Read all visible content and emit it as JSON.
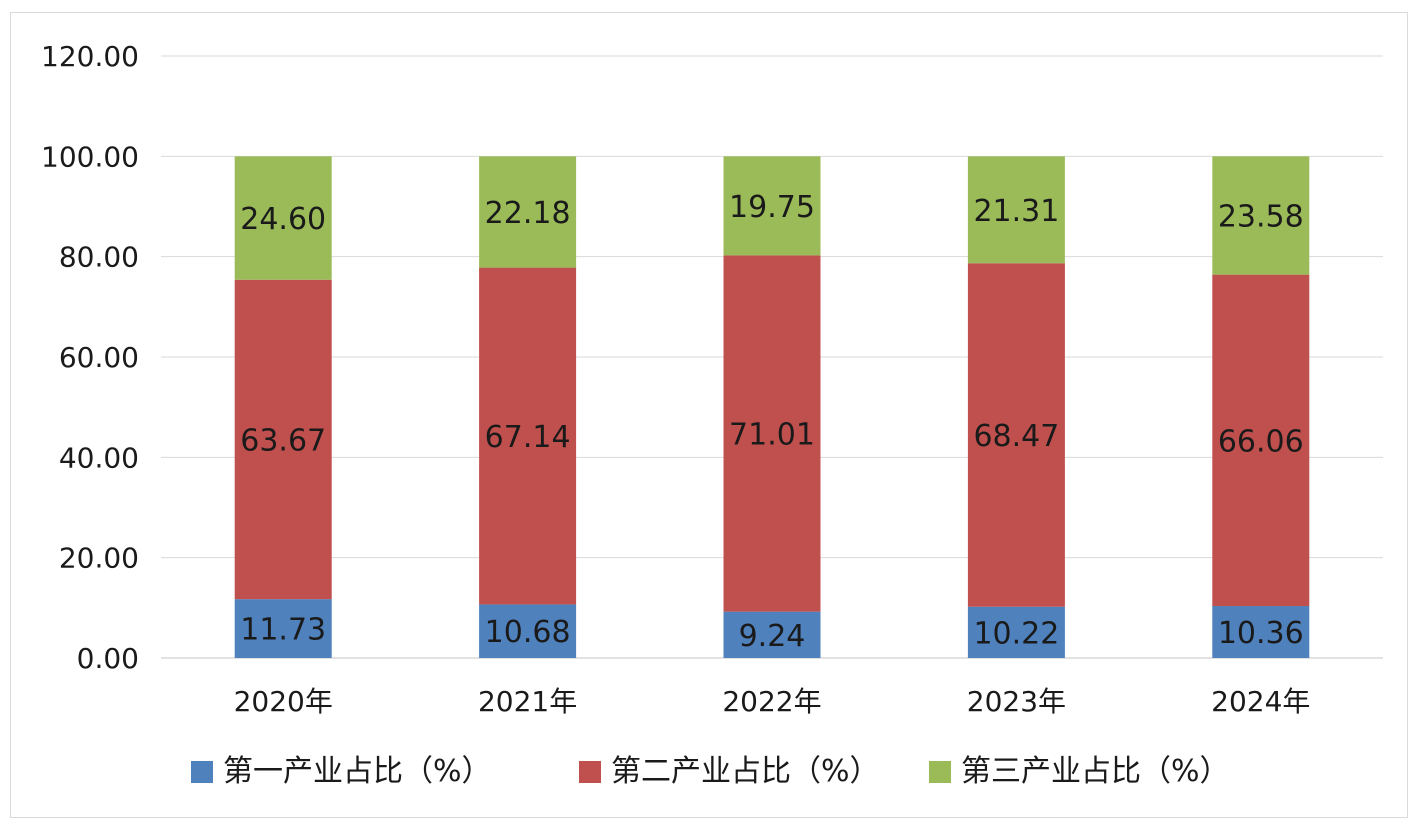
{
  "chart_data": {
    "type": "bar",
    "stacked": true,
    "categories": [
      "2020年",
      "2021年",
      "2022年",
      "2023年",
      "2024年"
    ],
    "series": [
      {
        "name": "第一产业占比（%）",
        "color": "#4f81bd",
        "values": [
          11.73,
          10.68,
          9.24,
          10.22,
          10.36
        ]
      },
      {
        "name": "第二产业占比（%）",
        "color": "#c0504d",
        "values": [
          63.67,
          67.14,
          71.01,
          68.47,
          66.06
        ]
      },
      {
        "name": "第三产业占比（%）",
        "color": "#9bbb59",
        "values": [
          24.6,
          22.18,
          19.75,
          21.31,
          23.58
        ]
      }
    ],
    "data_labels": [
      [
        "11.73",
        "10.68",
        "9.24",
        "10.22",
        "10.36"
      ],
      [
        "63.67",
        "67.14",
        "71.01",
        "68.47",
        "66.06"
      ],
      [
        "24.60",
        "22.18",
        "19.75",
        "21.31",
        "23.58"
      ]
    ],
    "y_ticks": [
      "0.00",
      "20.00",
      "40.00",
      "60.00",
      "80.00",
      "100.00",
      "120.00"
    ],
    "ylim": [
      0,
      120
    ],
    "grid": true,
    "grid_color": "#d9d9d9",
    "legend_position": "bottom",
    "title": "",
    "xlabel": "",
    "ylabel": ""
  }
}
